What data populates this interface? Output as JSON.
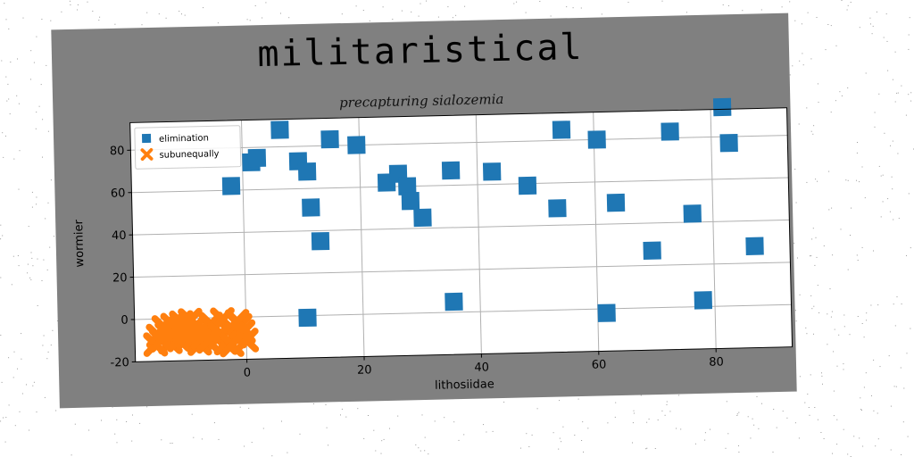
{
  "chart_data": {
    "type": "scatter",
    "title": "militaristical",
    "subtitle": "precapturing sialozemia",
    "xlabel": "lithosiidae",
    "ylabel": "wormier",
    "xlim": [
      -19,
      93
    ],
    "ylim": [
      -20,
      93
    ],
    "xticks": [
      0,
      20,
      40,
      60,
      80
    ],
    "yticks": [
      -20,
      0,
      20,
      40,
      60,
      80
    ],
    "grid": true,
    "legend": "top-left",
    "series": [
      {
        "name": "elimination",
        "marker": "square",
        "color": "#1f77b4",
        "points": [
          [
            -2,
            62
          ],
          [
            1.5,
            73
          ],
          [
            2.5,
            75
          ],
          [
            6.5,
            88
          ],
          [
            9.5,
            73
          ],
          [
            11,
            68
          ],
          [
            11.5,
            51
          ],
          [
            13,
            35
          ],
          [
            15,
            83
          ],
          [
            19.5,
            80
          ],
          [
            24.5,
            62
          ],
          [
            26.5,
            66
          ],
          [
            28,
            60
          ],
          [
            28.5,
            53
          ],
          [
            30.5,
            45
          ],
          [
            35.5,
            67
          ],
          [
            35.5,
            5
          ],
          [
            42.5,
            66
          ],
          [
            48.5,
            59
          ],
          [
            53.5,
            48
          ],
          [
            54.5,
            85
          ],
          [
            60.5,
            80
          ],
          [
            63.5,
            50
          ],
          [
            69.5,
            27
          ],
          [
            73,
            83
          ],
          [
            76.5,
            44
          ],
          [
            78,
            3
          ],
          [
            82,
            94
          ],
          [
            83,
            77
          ],
          [
            87,
            28
          ],
          [
            10.5,
            -1
          ],
          [
            61.5,
            -2
          ]
        ]
      },
      {
        "name": "subunequally",
        "marker": "x",
        "color": "#ff7f0e",
        "points": [
          [
            -15,
            -8
          ],
          [
            -14,
            -4
          ],
          [
            -13,
            -11
          ],
          [
            -12,
            -6
          ],
          [
            -11,
            -2
          ],
          [
            -10,
            -9
          ],
          [
            -9,
            -5
          ],
          [
            -8,
            -12
          ],
          [
            -7,
            -7
          ],
          [
            -6,
            -3
          ],
          [
            -5,
            -10
          ],
          [
            -4,
            -1
          ],
          [
            -3,
            -6
          ],
          [
            -2,
            -9
          ],
          [
            -1,
            -4
          ],
          [
            0,
            -11
          ],
          [
            -15.5,
            -12
          ],
          [
            -13.5,
            -7
          ],
          [
            -11.5,
            -10
          ],
          [
            -9.5,
            -1
          ],
          [
            -7.5,
            -9
          ],
          [
            -5.5,
            -5
          ],
          [
            -3.5,
            -12
          ],
          [
            -1.5,
            -2
          ],
          [
            -0.5,
            -7
          ],
          [
            -12.5,
            -3
          ],
          [
            -8.5,
            -8
          ],
          [
            -4.5,
            -8
          ],
          [
            -2.5,
            -13
          ],
          [
            -6.5,
            -11
          ],
          [
            -14.5,
            -10
          ],
          [
            -10.5,
            -6
          ]
        ]
      }
    ]
  }
}
